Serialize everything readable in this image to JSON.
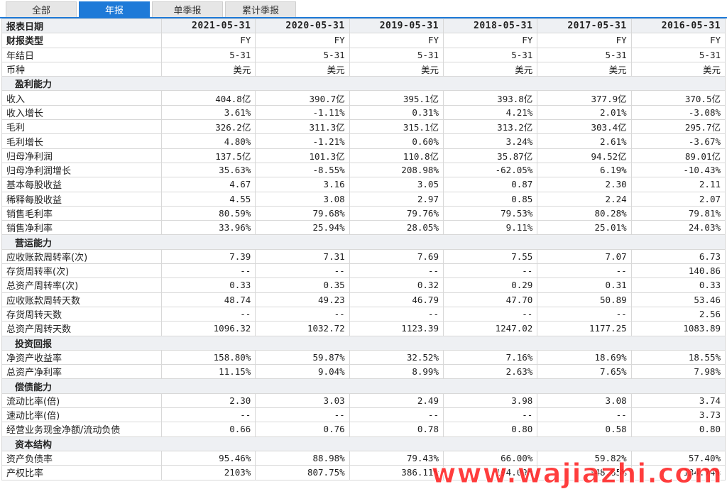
{
  "tabs": [
    {
      "label": "全部",
      "active": false
    },
    {
      "label": "年报",
      "active": true
    },
    {
      "label": "单季报",
      "active": false
    },
    {
      "label": "累计季报",
      "active": false
    }
  ],
  "header": {
    "label": "报表日期",
    "dates": [
      "2021-05-31",
      "2020-05-31",
      "2019-05-31",
      "2018-05-31",
      "2017-05-31",
      "2016-05-31"
    ]
  },
  "rows": [
    {
      "type": "row",
      "bold": true,
      "label": "财报类型",
      "values": [
        "FY",
        "FY",
        "FY",
        "FY",
        "FY",
        "FY"
      ]
    },
    {
      "type": "row",
      "label": "年结日",
      "values": [
        "5-31",
        "5-31",
        "5-31",
        "5-31",
        "5-31",
        "5-31"
      ]
    },
    {
      "type": "row",
      "label": "币种",
      "values": [
        "美元",
        "美元",
        "美元",
        "美元",
        "美元",
        "美元"
      ]
    },
    {
      "type": "section",
      "label": "盈利能力"
    },
    {
      "type": "row",
      "label": "收入",
      "values": [
        "404.8亿",
        "390.7亿",
        "395.1亿",
        "393.8亿",
        "377.9亿",
        "370.5亿"
      ]
    },
    {
      "type": "row",
      "label": "收入增长",
      "values": [
        "3.61%",
        "-1.11%",
        "0.31%",
        "4.21%",
        "2.01%",
        "-3.08%"
      ]
    },
    {
      "type": "row",
      "label": "毛利",
      "values": [
        "326.2亿",
        "311.3亿",
        "315.1亿",
        "313.2亿",
        "303.4亿",
        "295.7亿"
      ]
    },
    {
      "type": "row",
      "label": "毛利增长",
      "values": [
        "4.80%",
        "-1.21%",
        "0.60%",
        "3.24%",
        "2.61%",
        "-3.67%"
      ]
    },
    {
      "type": "row",
      "label": "归母净利润",
      "values": [
        "137.5亿",
        "101.3亿",
        "110.8亿",
        "35.87亿",
        "94.52亿",
        "89.01亿"
      ]
    },
    {
      "type": "row",
      "label": "归母净利润增长",
      "values": [
        "35.63%",
        "-8.55%",
        "208.98%",
        "-62.05%",
        "6.19%",
        "-10.43%"
      ]
    },
    {
      "type": "row",
      "label": "基本每股收益",
      "values": [
        "4.67",
        "3.16",
        "3.05",
        "0.87",
        "2.30",
        "2.11"
      ]
    },
    {
      "type": "row",
      "label": "稀释每股收益",
      "values": [
        "4.55",
        "3.08",
        "2.97",
        "0.85",
        "2.24",
        "2.07"
      ]
    },
    {
      "type": "row",
      "label": "销售毛利率",
      "values": [
        "80.59%",
        "79.68%",
        "79.76%",
        "79.53%",
        "80.28%",
        "79.81%"
      ]
    },
    {
      "type": "row",
      "label": "销售净利率",
      "values": [
        "33.96%",
        "25.94%",
        "28.05%",
        "9.11%",
        "25.01%",
        "24.03%"
      ]
    },
    {
      "type": "section",
      "label": "营运能力"
    },
    {
      "type": "row",
      "label": "应收账款周转率(次)",
      "values": [
        "7.39",
        "7.31",
        "7.69",
        "7.55",
        "7.07",
        "6.73"
      ]
    },
    {
      "type": "row",
      "label": "存货周转率(次)",
      "values": [
        "--",
        "--",
        "--",
        "--",
        "--",
        "140.86"
      ]
    },
    {
      "type": "row",
      "label": "总资产周转率(次)",
      "values": [
        "0.33",
        "0.35",
        "0.32",
        "0.29",
        "0.31",
        "0.33"
      ]
    },
    {
      "type": "row",
      "label": "应收账款周转天数",
      "values": [
        "48.74",
        "49.23",
        "46.79",
        "47.70",
        "50.89",
        "53.46"
      ]
    },
    {
      "type": "row",
      "label": "存货周转天数",
      "values": [
        "--",
        "--",
        "--",
        "--",
        "--",
        "2.56"
      ]
    },
    {
      "type": "row",
      "label": "总资产周转天数",
      "values": [
        "1096.32",
        "1032.72",
        "1123.39",
        "1247.02",
        "1177.25",
        "1083.89"
      ]
    },
    {
      "type": "section",
      "label": "投资回报"
    },
    {
      "type": "row",
      "label": "净资产收益率",
      "values": [
        "158.80%",
        "59.87%",
        "32.52%",
        "7.16%",
        "18.69%",
        "18.55%"
      ]
    },
    {
      "type": "row",
      "label": "总资产净利率",
      "values": [
        "11.15%",
        "9.04%",
        "8.99%",
        "2.63%",
        "7.65%",
        "7.98%"
      ]
    },
    {
      "type": "section",
      "label": "偿债能力"
    },
    {
      "type": "row",
      "label": "流动比率(倍)",
      "values": [
        "2.30",
        "3.03",
        "2.49",
        "3.98",
        "3.08",
        "3.74"
      ]
    },
    {
      "type": "row",
      "label": "速动比率(倍)",
      "values": [
        "--",
        "--",
        "--",
        "--",
        "--",
        "3.73"
      ]
    },
    {
      "type": "row",
      "label": "经营业务现金净额/流动负债",
      "values": [
        "0.66",
        "0.76",
        "0.78",
        "0.80",
        "0.58",
        "0.80"
      ]
    },
    {
      "type": "section",
      "label": "资本结构"
    },
    {
      "type": "row",
      "label": "资产负债率",
      "values": [
        "95.46%",
        "88.98%",
        "79.43%",
        "66.00%",
        "59.82%",
        "57.40%"
      ]
    },
    {
      "type": "row",
      "label": "产权比率",
      "values": [
        "2103%",
        "807.75%",
        "386.11%",
        "194.09%",
        "148.85%",
        "134.74%"
      ]
    }
  ],
  "watermark": "www.wajiazhi.com"
}
